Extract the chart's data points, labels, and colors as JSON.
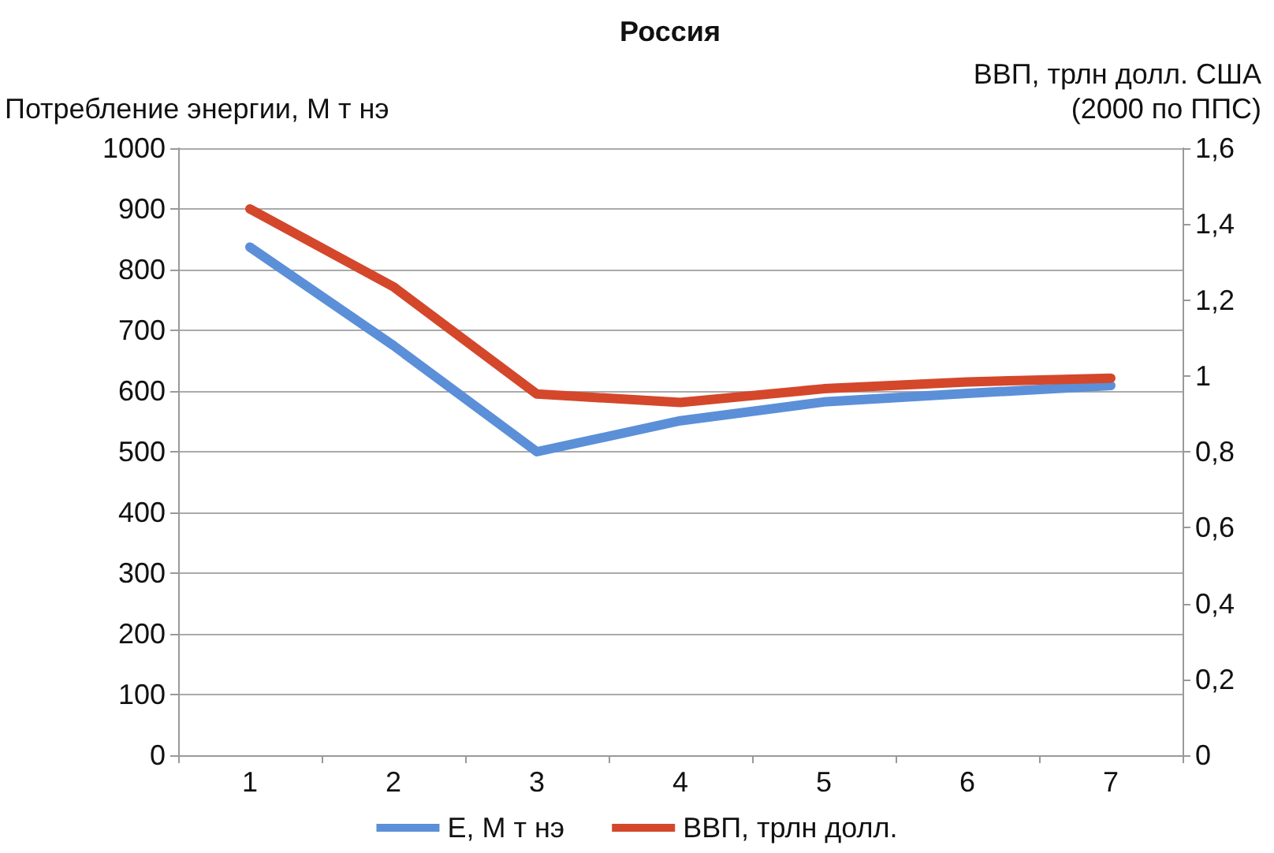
{
  "chart_data": {
    "type": "line",
    "title": "Россия",
    "ylabel": "Потребление энергии, М т нэ",
    "y2label": "ВВП, трлн долл. США\n(2000 по ППС)",
    "categories": [
      "1",
      "2",
      "3",
      "4",
      "5",
      "6",
      "7"
    ],
    "series": [
      {
        "name": "E, М т нэ",
        "color": "#5b8fd8",
        "values": [
          837,
          675,
          500,
          551,
          582,
          596,
          609
        ]
      },
      {
        "name": "ВВП, трлн долл.",
        "color": "#d4472b",
        "axis": "y2",
        "values": [
          1.44,
          1.235,
          0.952,
          0.93,
          0.966,
          0.984,
          0.994
        ]
      }
    ],
    "ylim": [
      0,
      1000
    ],
    "yticks": [
      0,
      100,
      200,
      300,
      400,
      500,
      600,
      700,
      800,
      900,
      1000
    ],
    "y2lim": [
      0,
      1.6
    ],
    "y2ticks": [
      0,
      {
        "value": 0.2,
        "label": "0,2"
      },
      {
        "value": 0.4,
        "label": "0,4"
      },
      {
        "value": 0.6,
        "label": "0,6"
      },
      {
        "value": 0.8,
        "label": "0,8"
      },
      1,
      {
        "value": 1.2,
        "label": "1,2"
      },
      {
        "value": 1.4,
        "label": "1,4"
      },
      {
        "value": 1.6,
        "label": "1,6"
      }
    ],
    "grid": "y",
    "legend": "bottom",
    "marker": "none",
    "line_style": "solid"
  }
}
